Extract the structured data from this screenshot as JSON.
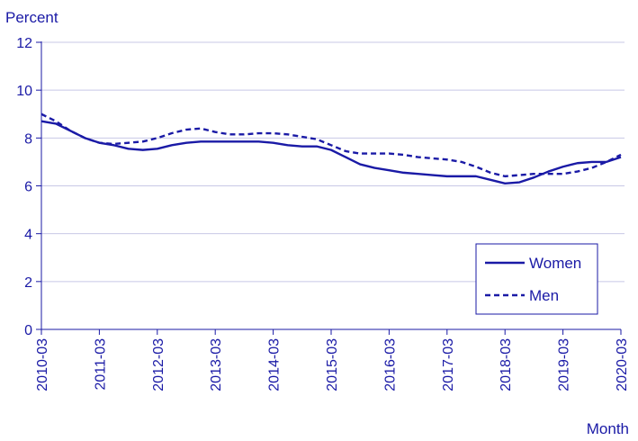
{
  "chart_data": {
    "type": "line",
    "ylabel": "Percent",
    "xlabel": "Month",
    "ylim": [
      0,
      12
    ],
    "yticks": [
      0,
      2,
      4,
      6,
      8,
      10,
      12
    ],
    "xticks": [
      "2010-03",
      "2011-03",
      "2012-03",
      "2013-03",
      "2014-03",
      "2015-03",
      "2016-03",
      "2017-03",
      "2018-03",
      "2019-03",
      "2020-03"
    ],
    "x_start": "2010-03",
    "x_end": "2020-03",
    "grid": "horizontal",
    "legend_position": "bottom-right",
    "series": [
      {
        "name": "Women",
        "style": "solid",
        "color": "#1a1aa6",
        "points": [
          [
            "2010-03",
            8.7
          ],
          [
            "2010-06",
            8.6
          ],
          [
            "2010-09",
            8.3
          ],
          [
            "2010-12",
            8.0
          ],
          [
            "2011-03",
            7.8
          ],
          [
            "2011-06",
            7.7
          ],
          [
            "2011-09",
            7.55
          ],
          [
            "2011-12",
            7.5
          ],
          [
            "2012-03",
            7.55
          ],
          [
            "2012-06",
            7.7
          ],
          [
            "2012-09",
            7.8
          ],
          [
            "2012-12",
            7.85
          ],
          [
            "2013-03",
            7.85
          ],
          [
            "2013-06",
            7.85
          ],
          [
            "2013-09",
            7.85
          ],
          [
            "2013-12",
            7.85
          ],
          [
            "2014-03",
            7.8
          ],
          [
            "2014-06",
            7.7
          ],
          [
            "2014-09",
            7.65
          ],
          [
            "2014-12",
            7.65
          ],
          [
            "2015-03",
            7.5
          ],
          [
            "2015-06",
            7.2
          ],
          [
            "2015-09",
            6.9
          ],
          [
            "2015-12",
            6.75
          ],
          [
            "2016-03",
            6.65
          ],
          [
            "2016-06",
            6.55
          ],
          [
            "2016-09",
            6.5
          ],
          [
            "2016-12",
            6.45
          ],
          [
            "2017-03",
            6.4
          ],
          [
            "2017-06",
            6.4
          ],
          [
            "2017-09",
            6.4
          ],
          [
            "2017-12",
            6.25
          ],
          [
            "2018-03",
            6.1
          ],
          [
            "2018-06",
            6.15
          ],
          [
            "2018-09",
            6.35
          ],
          [
            "2018-12",
            6.6
          ],
          [
            "2019-03",
            6.8
          ],
          [
            "2019-06",
            6.95
          ],
          [
            "2019-09",
            7.0
          ],
          [
            "2019-12",
            7.0
          ],
          [
            "2020-03",
            7.2
          ]
        ]
      },
      {
        "name": "Men",
        "style": "dashed",
        "color": "#1a1aa6",
        "points": [
          [
            "2010-03",
            9.0
          ],
          [
            "2010-06",
            8.7
          ],
          [
            "2010-09",
            8.3
          ],
          [
            "2010-12",
            8.0
          ],
          [
            "2011-03",
            7.8
          ],
          [
            "2011-06",
            7.75
          ],
          [
            "2011-09",
            7.8
          ],
          [
            "2011-12",
            7.85
          ],
          [
            "2012-03",
            8.0
          ],
          [
            "2012-06",
            8.2
          ],
          [
            "2012-09",
            8.35
          ],
          [
            "2012-12",
            8.4
          ],
          [
            "2013-03",
            8.25
          ],
          [
            "2013-06",
            8.15
          ],
          [
            "2013-09",
            8.15
          ],
          [
            "2013-12",
            8.2
          ],
          [
            "2014-03",
            8.2
          ],
          [
            "2014-06",
            8.15
          ],
          [
            "2014-09",
            8.05
          ],
          [
            "2014-12",
            7.95
          ],
          [
            "2015-03",
            7.7
          ],
          [
            "2015-06",
            7.45
          ],
          [
            "2015-09",
            7.35
          ],
          [
            "2015-12",
            7.35
          ],
          [
            "2016-03",
            7.35
          ],
          [
            "2016-06",
            7.3
          ],
          [
            "2016-09",
            7.2
          ],
          [
            "2016-12",
            7.15
          ],
          [
            "2017-03",
            7.1
          ],
          [
            "2017-06",
            7.0
          ],
          [
            "2017-09",
            6.8
          ],
          [
            "2017-12",
            6.55
          ],
          [
            "2018-03",
            6.4
          ],
          [
            "2018-06",
            6.45
          ],
          [
            "2018-09",
            6.5
          ],
          [
            "2018-12",
            6.5
          ],
          [
            "2019-03",
            6.5
          ],
          [
            "2019-06",
            6.6
          ],
          [
            "2019-09",
            6.75
          ],
          [
            "2019-12",
            7.0
          ],
          [
            "2020-03",
            7.3
          ]
        ]
      }
    ]
  }
}
